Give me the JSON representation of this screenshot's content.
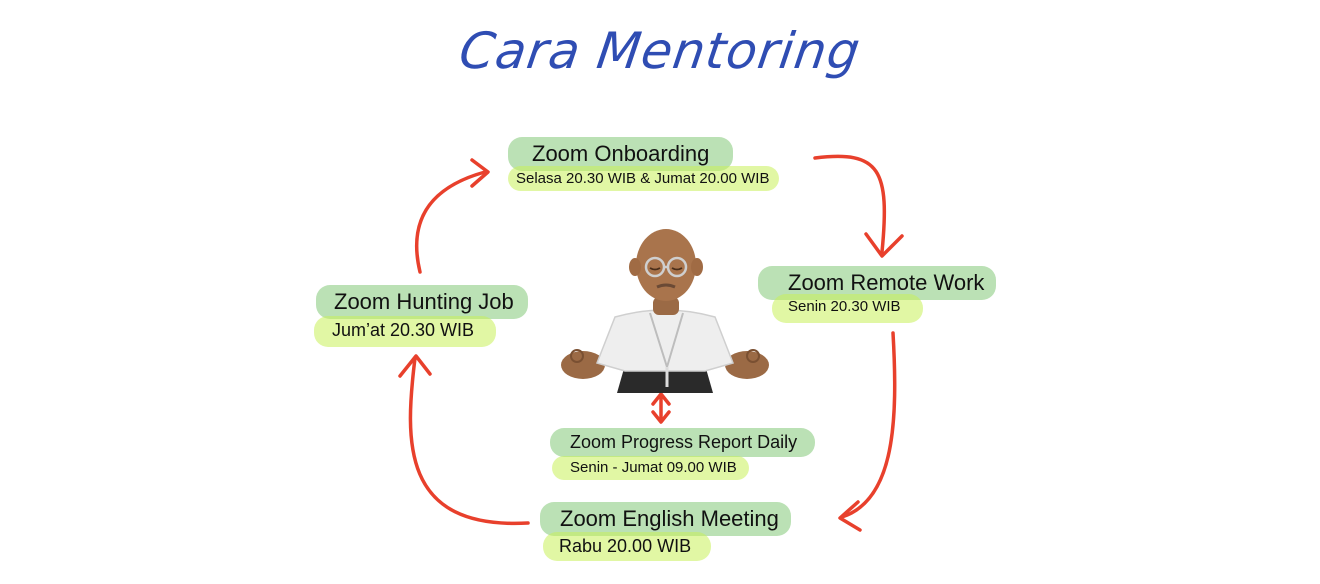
{
  "title": "Cara Mentoring",
  "nodes": {
    "onboarding": {
      "label": "Zoom Onboarding",
      "schedule": "Selasa 20.30 WIB & Jumat 20.00 WIB"
    },
    "remote_work": {
      "label": "Zoom Remote Work",
      "schedule": "Senin 20.30 WIB"
    },
    "hunting_job": {
      "label": "Zoom Hunting Job",
      "schedule": "Jum’at 20.30 WIB"
    },
    "progress_report": {
      "label": "Zoom Progress Report Daily",
      "schedule": "Senin - Jumat 09.00 WIB"
    },
    "english_meeting": {
      "label": "Zoom English Meeting",
      "schedule": "Rabu 20.00 WIB"
    }
  },
  "colors": {
    "title": "#2f4db3",
    "arrow": "#e8402c",
    "label_highlight": "#84c878",
    "schedule_highlight": "#c8f05a"
  },
  "icons": {
    "center": "meditating-mentor-avatar-icon"
  }
}
